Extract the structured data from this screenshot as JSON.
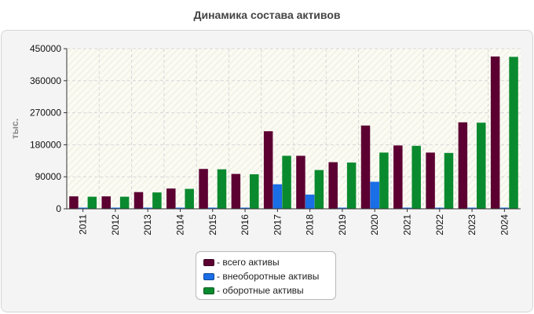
{
  "chart_data": {
    "type": "bar",
    "title": "Динамика состава активов",
    "xlabel": "",
    "ylabel": "тыс.",
    "ylim": [
      0,
      450000
    ],
    "yticks": [
      0,
      90000,
      180000,
      270000,
      360000,
      450000
    ],
    "ytick_labels": [
      "0",
      "90000",
      "180000",
      "270000",
      "360000",
      "450000"
    ],
    "grid": true,
    "legend_position": "bottom",
    "categories": [
      "2011",
      "2012",
      "2013",
      "2014",
      "2015",
      "2016",
      "2017",
      "2018",
      "2019",
      "2020",
      "2021",
      "2022",
      "2023",
      "2024"
    ],
    "series": [
      {
        "name": "всего активы",
        "color": "#5c0032",
        "values": [
          35000,
          35000,
          47000,
          57000,
          112000,
          98000,
          218000,
          149000,
          131000,
          234000,
          178000,
          158000,
          243000,
          428000
        ]
      },
      {
        "name": "внеоборотные активы",
        "color": "#1a6ee6",
        "values": [
          1000,
          1000,
          1000,
          1000,
          1000,
          1000,
          69000,
          40000,
          1000,
          76000,
          1000,
          1000,
          1000,
          1000
        ]
      },
      {
        "name": "оборотные активы",
        "color": "#0a8a2e",
        "values": [
          34000,
          34000,
          46000,
          56000,
          111000,
          97000,
          149000,
          109000,
          130000,
          158000,
          177000,
          157000,
          242000,
          427000
        ]
      }
    ]
  }
}
